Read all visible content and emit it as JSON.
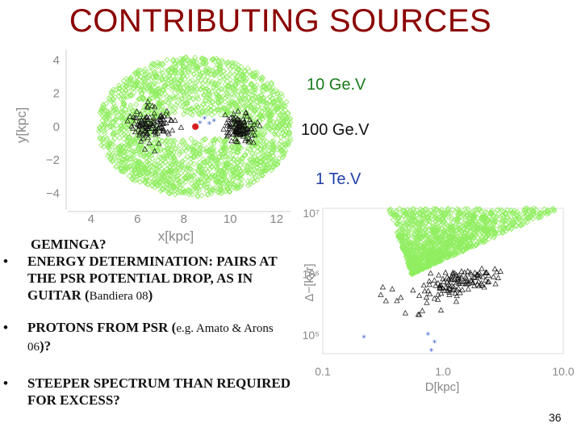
{
  "slide": {
    "title": "CONTRIBUTING SOURCES",
    "energies": [
      "10 Ge.V",
      "100 Ge.V",
      "1 Te.V"
    ],
    "page_number": "36",
    "preamble": "GEMINGA?",
    "bullets": [
      {
        "bold": "ENERGY DETERMINATION: PAIRS AT THE PSR POTENTIAL DROP, AS IN GUITAR (",
        "light": "Bandiera 08",
        "tail": ")"
      },
      {
        "bold": "PROTONS FROM PSR (",
        "light": "e.g. Amato & Arons 06",
        "tail": ")?"
      },
      {
        "bold": "STEEPER SPECTRUM THAN REQUIRED FOR EXCESS?",
        "light": "",
        "tail": ""
      }
    ],
    "bullet_glyph": "•"
  },
  "chart_data": [
    {
      "type": "scatter",
      "title": "",
      "xlabel": "x[kpc]",
      "ylabel": "y[kpc]",
      "xlim": [
        3,
        12.6
      ],
      "ylim": [
        -5,
        4.6
      ],
      "xticks": [
        4,
        6,
        8,
        10,
        12
      ],
      "yticks": [
        -4,
        -2,
        0,
        2,
        4
      ],
      "xtick_labels": [
        "4",
        "6",
        "8",
        "10",
        "12"
      ],
      "ytick_labels": [
        "−4",
        "−2",
        "0",
        "2",
        "4"
      ],
      "sun": {
        "x": 8.5,
        "y": 0,
        "color": "#d42020"
      },
      "series": [
        {
          "marker": "diamond",
          "color": "#90EE60",
          "region": "annulus",
          "center": [
            8.5,
            0
          ],
          "r_min": 0.3,
          "r_max": 4.2
        },
        {
          "marker": "triangle",
          "color": "#111111",
          "region": "clumps",
          "clumps": [
            [
              6.6,
              0.1,
              0.8,
              0.9
            ],
            [
              10.4,
              0.0,
              0.6,
              0.8
            ]
          ]
        },
        {
          "marker": "star",
          "color": "#3a5fd0",
          "points": [
            [
              8.9,
              0.45
            ],
            [
              9.3,
              0.3
            ],
            [
              9.1,
              0.15
            ],
            [
              8.7,
              0.2
            ]
          ]
        }
      ]
    },
    {
      "type": "scatter",
      "title": "",
      "xlabel": "D[kpc]",
      "ylabel": "Δ−[kyr]",
      "x_scale": "log",
      "y_scale": "log",
      "xlim": [
        0.1,
        10
      ],
      "ylim": [
        50000,
        12000000
      ],
      "xtick_labels": [
        "0.1",
        "1.0",
        "10.0"
      ],
      "ytick_labels": [
        "10⁷",
        "10⁶",
        "10⁵"
      ],
      "series": [
        {
          "marker": "diamond",
          "color": "#90EE60",
          "region": "wedge",
          "apex_x": 0.55,
          "apex_y": 1000000,
          "edge_x": [
            0.35,
            9.5
          ]
        },
        {
          "marker": "triangle",
          "color": "#111111",
          "region": "band",
          "center": [
            1.3,
            700000
          ]
        },
        {
          "marker": "star",
          "color": "#3a5fd0",
          "points": [
            [
              0.22,
              90000
            ],
            [
              0.75,
              100000
            ],
            [
              0.85,
              75000
            ],
            [
              0.8,
              55000
            ]
          ]
        }
      ]
    }
  ]
}
